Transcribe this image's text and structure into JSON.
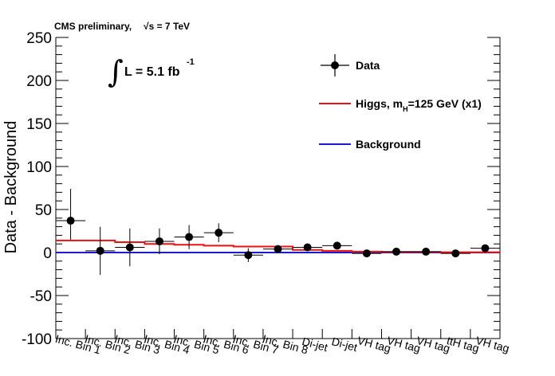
{
  "header": {
    "experiment": "CMS preliminary,",
    "energy": "√s = 7 TeV"
  },
  "lumi": {
    "text": "L = 5.1 fb",
    "exponent": "-1"
  },
  "chart_data": {
    "type": "scatter",
    "title": "",
    "xlabel": "",
    "ylabel": "Data - Background",
    "ylim": [
      -100,
      250
    ],
    "yticks": [
      -100,
      -50,
      0,
      50,
      100,
      150,
      200,
      250
    ],
    "categories": [
      "Inc. Bin 1",
      "Inc. Bin 2",
      "Inc. Bin 3",
      "Inc. Bin 4",
      "Inc. Bin 5",
      "Inc. Bin 6",
      "Inc. Bin 7",
      "Inc. Bin 8",
      "Di-jet",
      "Di-jet",
      "VH tag",
      "VH tag",
      "VH tag",
      "ttH tag",
      "VH tag"
    ],
    "series": [
      {
        "name": "Data",
        "color": "#000000",
        "values": [
          37,
          2,
          6,
          13,
          18,
          23,
          -3,
          4,
          6,
          8,
          -1,
          1,
          1,
          -1,
          5
        ],
        "err_low": [
          22,
          28,
          22,
          15,
          14,
          11,
          8,
          4,
          4,
          4,
          3,
          3,
          3,
          3,
          4
        ],
        "err_high": [
          37,
          28,
          22,
          15,
          14,
          11,
          8,
          4,
          4,
          4,
          3,
          3,
          3,
          3,
          4
        ]
      },
      {
        "name": "Higgs, m_H=125 GeV (x1)",
        "color": "#ee1111",
        "values": [
          14,
          14,
          12,
          10,
          9,
          8,
          7,
          7,
          3,
          2,
          1,
          0.6,
          0.6,
          0.3,
          0.4
        ]
      },
      {
        "name": "Background",
        "color": "#1a1ad0",
        "values": [
          0,
          0,
          0,
          0,
          0,
          0,
          0,
          0,
          0,
          0,
          0,
          0,
          0,
          0,
          0
        ]
      }
    ]
  },
  "legend": {
    "data_label": "Data",
    "higgs_prefix": "Higgs, m",
    "higgs_sub": "H",
    "higgs_suffix": "=125 GeV (x1)",
    "background_label": "Background"
  }
}
